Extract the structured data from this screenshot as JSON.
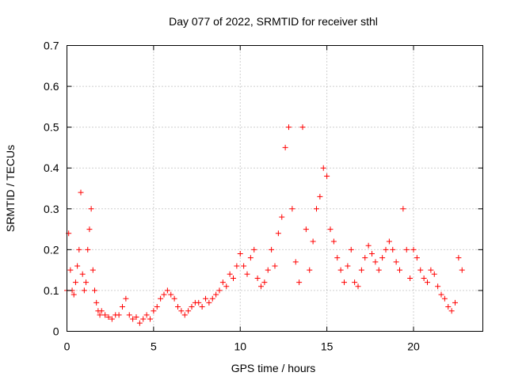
{
  "chart_data": {
    "type": "scatter",
    "title": "Day 077 of 2022, SRMTID for receiver sthl",
    "xlabel": "GPS time / hours",
    "ylabel": "SRMTID / TECUs",
    "xlim": [
      0,
      24
    ],
    "ylim": [
      0,
      0.7
    ],
    "xticks": [
      0,
      5,
      10,
      15,
      20
    ],
    "xtick_labels": [
      "0",
      "5",
      "10",
      "15",
      "20"
    ],
    "yticks": [
      0,
      0.1,
      0.2,
      0.3,
      0.4,
      0.5,
      0.6,
      0.7
    ],
    "ytick_labels": [
      "0",
      "0.1",
      "0.2",
      "0.3",
      "0.4",
      "0.5",
      "0.6",
      "0.7"
    ],
    "grid": true,
    "marker": "+",
    "series": [
      {
        "name": "SRMTID",
        "color": "#ff0000",
        "x": [
          0.0,
          0.1,
          0.2,
          0.3,
          0.4,
          0.5,
          0.6,
          0.7,
          0.8,
          0.9,
          1.0,
          1.1,
          1.2,
          1.3,
          1.4,
          1.5,
          1.6,
          1.7,
          1.8,
          1.9,
          2.0,
          2.2,
          2.4,
          2.6,
          2.8,
          3.0,
          3.2,
          3.4,
          3.6,
          3.8,
          4.0,
          4.2,
          4.4,
          4.6,
          4.8,
          5.0,
          5.2,
          5.4,
          5.6,
          5.8,
          6.0,
          6.2,
          6.4,
          6.6,
          6.8,
          7.0,
          7.2,
          7.4,
          7.6,
          7.8,
          8.0,
          8.2,
          8.4,
          8.6,
          8.8,
          9.0,
          9.2,
          9.4,
          9.6,
          9.8,
          10.0,
          10.2,
          10.4,
          10.6,
          10.8,
          11.0,
          11.2,
          11.4,
          11.6,
          11.8,
          12.0,
          12.2,
          12.4,
          12.6,
          12.8,
          13.0,
          13.2,
          13.4,
          13.6,
          13.8,
          14.0,
          14.2,
          14.4,
          14.6,
          14.8,
          15.0,
          15.2,
          15.4,
          15.6,
          15.8,
          16.0,
          16.2,
          16.4,
          16.6,
          16.8,
          17.0,
          17.2,
          17.4,
          17.6,
          17.8,
          18.0,
          18.2,
          18.4,
          18.6,
          18.8,
          19.0,
          19.2,
          19.4,
          19.6,
          19.8,
          20.0,
          20.2,
          20.4,
          20.6,
          20.8,
          21.0,
          21.2,
          21.4,
          21.6,
          21.8,
          22.0,
          22.2,
          22.4,
          22.6,
          22.8
        ],
        "y": [
          0.1,
          0.24,
          0.15,
          0.1,
          0.09,
          0.12,
          0.16,
          0.2,
          0.34,
          0.14,
          0.1,
          0.12,
          0.2,
          0.25,
          0.3,
          0.15,
          0.1,
          0.07,
          0.05,
          0.04,
          0.05,
          0.04,
          0.035,
          0.03,
          0.04,
          0.04,
          0.06,
          0.08,
          0.04,
          0.03,
          0.035,
          0.02,
          0.03,
          0.04,
          0.03,
          0.05,
          0.06,
          0.08,
          0.09,
          0.1,
          0.09,
          0.08,
          0.06,
          0.05,
          0.04,
          0.05,
          0.06,
          0.07,
          0.07,
          0.06,
          0.08,
          0.07,
          0.08,
          0.09,
          0.1,
          0.12,
          0.11,
          0.14,
          0.13,
          0.16,
          0.19,
          0.16,
          0.14,
          0.18,
          0.2,
          0.13,
          0.11,
          0.12,
          0.15,
          0.2,
          0.16,
          0.24,
          0.28,
          0.45,
          0.5,
          0.3,
          0.17,
          0.12,
          0.5,
          0.25,
          0.15,
          0.22,
          0.3,
          0.33,
          0.4,
          0.38,
          0.25,
          0.22,
          0.18,
          0.15,
          0.12,
          0.16,
          0.2,
          0.12,
          0.11,
          0.15,
          0.18,
          0.21,
          0.19,
          0.17,
          0.15,
          0.18,
          0.2,
          0.22,
          0.2,
          0.17,
          0.15,
          0.3,
          0.2,
          0.13,
          0.2,
          0.18,
          0.15,
          0.13,
          0.12,
          0.15,
          0.14,
          0.11,
          0.09,
          0.08,
          0.06,
          0.05,
          0.07,
          0.18,
          0.15
        ]
      }
    ]
  }
}
